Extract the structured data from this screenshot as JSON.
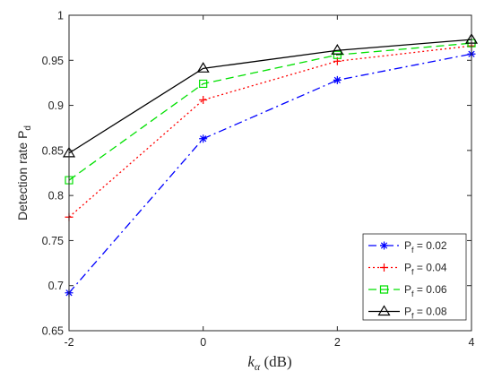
{
  "chart_data": {
    "type": "line",
    "x": [
      -2,
      0,
      2,
      4
    ],
    "xlim": [
      -2,
      4
    ],
    "ylim": [
      0.65,
      1
    ],
    "xticks": [
      "-2",
      "0",
      "2",
      "4"
    ],
    "yticks": [
      "0.65",
      "0.7",
      "0.75",
      "0.8",
      "0.85",
      "0.9",
      "0.95",
      "1"
    ],
    "xlabel": {
      "main": "k",
      "sub": "α",
      "rest": " (dB)"
    },
    "ylabel": {
      "main": "Detection rate P",
      "sub": "d"
    },
    "grid": false,
    "legend_position": "bottom-right",
    "series": [
      {
        "name": "P",
        "name_sub": "f",
        "name_rest": " = 0.02",
        "values": [
          0.692,
          0.863,
          0.928,
          0.957
        ],
        "color": "#0000ff",
        "dash": "dash-dot",
        "marker": "asterisk"
      },
      {
        "name": "P",
        "name_sub": "f",
        "name_rest": " = 0.04",
        "values": [
          0.776,
          0.906,
          0.949,
          0.966
        ],
        "color": "#ff0000",
        "dash": "dotted",
        "marker": "plus"
      },
      {
        "name": "P",
        "name_sub": "f",
        "name_rest": " = 0.06",
        "values": [
          0.817,
          0.924,
          0.956,
          0.969
        ],
        "color": "#00e000",
        "dash": "dashed",
        "marker": "square"
      },
      {
        "name": "P",
        "name_sub": "f",
        "name_rest": " = 0.08",
        "values": [
          0.847,
          0.941,
          0.961,
          0.973
        ],
        "color": "#000000",
        "dash": "solid",
        "marker": "triangle"
      }
    ]
  }
}
